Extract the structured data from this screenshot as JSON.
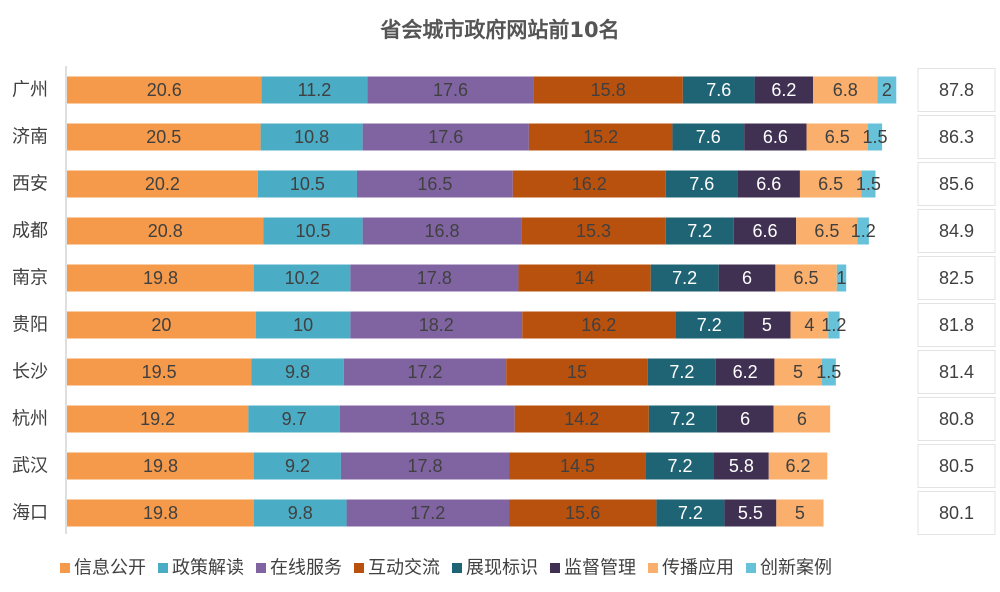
{
  "chart_data": {
    "type": "bar",
    "orientation": "horizontal",
    "stacked": true,
    "title": "省会城市政府网站前10名",
    "categories": [
      "广州",
      "济南",
      "西安",
      "成都",
      "南京",
      "贵阳",
      "长沙",
      "杭州",
      "武汉",
      "海口"
    ],
    "series": [
      {
        "name": "信息公开",
        "color": "#F59A4A",
        "values": [
          20.6,
          20.5,
          20.2,
          20.8,
          19.8,
          20,
          19.5,
          19.2,
          19.8,
          19.8
        ]
      },
      {
        "name": "政策解读",
        "color": "#4BACC6",
        "values": [
          11.2,
          10.8,
          10.5,
          10.5,
          10.2,
          10,
          9.8,
          9.7,
          9.2,
          9.8
        ]
      },
      {
        "name": "在线服务",
        "color": "#8064A2",
        "values": [
          17.6,
          17.6,
          16.5,
          16.8,
          17.8,
          18.2,
          17.2,
          18.5,
          17.8,
          17.2
        ]
      },
      {
        "name": "互动交流",
        "color": "#B9510E",
        "values": [
          15.8,
          15.2,
          16.2,
          15.3,
          14,
          16.2,
          15,
          14.2,
          14.5,
          15.6
        ]
      },
      {
        "name": "展现标识",
        "color": "#1F6475",
        "values": [
          7.6,
          7.6,
          7.6,
          7.2,
          7.2,
          7.2,
          7.2,
          7.2,
          7.2,
          7.2
        ]
      },
      {
        "name": "监督管理",
        "color": "#403152",
        "values": [
          6.2,
          6.6,
          6.6,
          6.6,
          6,
          5,
          6.2,
          6,
          5.8,
          5.5
        ]
      },
      {
        "name": "传播应用",
        "color": "#FAAF6C",
        "values": [
          6.8,
          6.5,
          6.5,
          6.5,
          6.5,
          4,
          5,
          6,
          6.2,
          5
        ]
      },
      {
        "name": "创新案例",
        "color": "#66C1D9",
        "values": [
          2,
          1.5,
          1.5,
          1.2,
          1,
          1.2,
          1.5,
          null,
          null,
          null
        ]
      }
    ],
    "totals": [
      "87.8",
      "86.3",
      "85.6",
      "84.9",
      "82.5",
      "81.8",
      "81.4",
      "80.8",
      "80.5",
      "80.1"
    ],
    "legend_position": "bottom",
    "grid": false
  }
}
